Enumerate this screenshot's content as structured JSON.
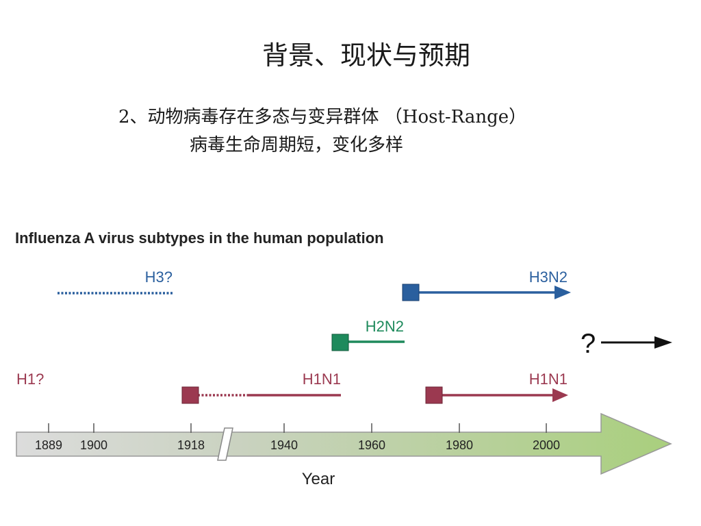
{
  "slide": {
    "title": "背景、现状与预期",
    "subtitle_line1": "2、动物病毒存在多态与变异群体 （Host-Range）",
    "subtitle_line2": "病毒生命周期短，变化多样"
  },
  "figure": {
    "title": "Influenza A virus subtypes in the human population",
    "axis_label": "Year",
    "ticks": [
      "1889",
      "1900",
      "1918",
      "1940",
      "1960",
      "1980",
      "2000"
    ],
    "subtypes": [
      {
        "label": "H3?",
        "color": "#2a5f9e"
      },
      {
        "label": "H3N2",
        "color": "#2a5f9e"
      },
      {
        "label": "H2N2",
        "color": "#1e8a5c"
      },
      {
        "label": "H1?",
        "color": "#9b3950"
      },
      {
        "label": "H1N1",
        "color": "#9b3950"
      },
      {
        "label": "H1N1",
        "color": "#9b3950"
      }
    ],
    "future_label": "?"
  }
}
